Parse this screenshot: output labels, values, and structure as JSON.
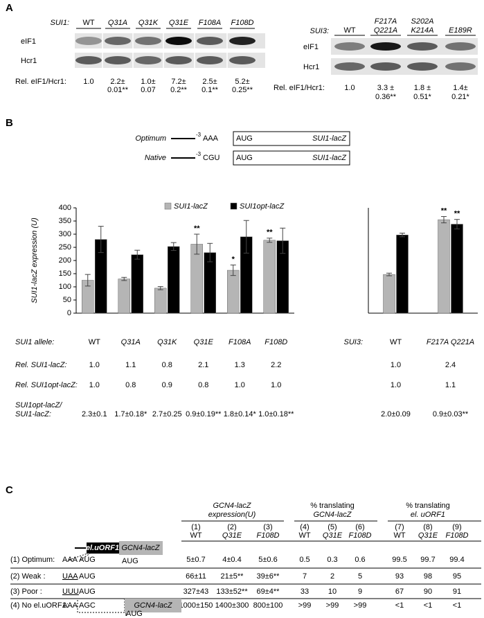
{
  "panel_a": {
    "label": "A",
    "left": {
      "gene": "SUI1:",
      "lanes": [
        "WT",
        "Q31A",
        "Q31K",
        "Q31E",
        "F108A",
        "F108D"
      ],
      "rows": [
        "eIF1",
        "Hcr1"
      ],
      "rel_label": "Rel. eIF1/Hcr1:",
      "rel_values": [
        [
          "1.0"
        ],
        [
          "2.2±",
          "0.01**"
        ],
        [
          "1.0±",
          "0.07"
        ],
        [
          "7.2±",
          "0.2**"
        ],
        [
          "2.5±",
          "0.1**"
        ],
        [
          "5.2±",
          "0.25**"
        ]
      ]
    },
    "right": {
      "gene": "SUI3:",
      "lanes": [
        [
          "WT"
        ],
        [
          "F217A",
          "Q221A"
        ],
        [
          "S202A",
          "K214A"
        ],
        [
          "E189R"
        ]
      ],
      "rows": [
        "eIF1",
        "Hcr1"
      ],
      "rel_label": "Rel. eIF1/Hcr1:",
      "rel_values": [
        [
          "1.0"
        ],
        [
          "3.3 ±",
          "0.36**"
        ],
        [
          "1.8 ±",
          "0.51*"
        ],
        [
          "1.4±",
          "0.21*"
        ]
      ]
    }
  },
  "panel_b": {
    "label": "B",
    "constructs": [
      {
        "name": "Optimum",
        "pos": "-3",
        "seq": "AAA",
        "start": "AUG",
        "gene": "SUI1-lacZ"
      },
      {
        "name": "Native",
        "pos": "-3",
        "seq": "CGU",
        "start": "AUG",
        "gene": "SUI1-lacZ"
      }
    ],
    "rows": [
      {
        "label": [
          "Rel. SUI1-lacZ:"
        ],
        "left": [
          "1.0",
          "1.1",
          "0.8",
          "2.1",
          "1.3",
          "2.2"
        ],
        "right": [
          "1.0",
          "2.4"
        ]
      },
      {
        "label": [
          "Rel. SUI1opt-lacZ:"
        ],
        "left": [
          "1.0",
          "0.8",
          "0.9",
          "0.8",
          "1.0",
          "1.0"
        ],
        "right": [
          "1.0",
          "1.1"
        ]
      },
      {
        "label": [
          "SUI1opt-lacZ/",
          "SUI1-lacZ:"
        ],
        "left": [
          "2.3±0.1",
          "1.7±0.18*",
          "2.7±0.25",
          "0.9±0.19**",
          "1.8±0.14*",
          "1.0±0.18**"
        ],
        "right": [
          "2.0±0.09",
          "0.9±0.03**"
        ]
      }
    ]
  },
  "chart_data": [
    {
      "type": "bar",
      "x_label": "SUI1 allele:",
      "y_label": "SUI1-lacZ expression (U)",
      "categories": [
        "WT",
        "Q31A",
        "Q31K",
        "Q31E",
        "F108A",
        "F108D"
      ],
      "series": [
        {
          "name": "SUI1-lacZ",
          "color": "#b5b5b5",
          "values": [
            125,
            130,
            95,
            262,
            163,
            277
          ],
          "errors": [
            22,
            6,
            6,
            38,
            20,
            8
          ],
          "annotations": [
            null,
            null,
            null,
            "**",
            "*",
            "**"
          ]
        },
        {
          "name": "SUI1opt-lacZ",
          "color": "#000000",
          "values": [
            280,
            222,
            253,
            230,
            290,
            275
          ],
          "errors": [
            50,
            17,
            15,
            35,
            62,
            48
          ],
          "annotations": [
            null,
            null,
            null,
            null,
            null,
            null
          ]
        }
      ],
      "ylim": [
        0,
        400
      ],
      "yticks": [
        0,
        50,
        100,
        150,
        200,
        250,
        300,
        350,
        400
      ],
      "legend": "top"
    },
    {
      "type": "bar",
      "x_label": "SUI3:",
      "categories": [
        "WT",
        "F217A Q221A"
      ],
      "series": [
        {
          "color": "#b5b5b5",
          "values": [
            147,
            355
          ],
          "errors": [
            5,
            12
          ],
          "annotations": [
            null,
            "**"
          ]
        },
        {
          "color": "#000000",
          "values": [
            297,
            338
          ],
          "errors": [
            7,
            18
          ],
          "annotations": [
            null,
            "**"
          ]
        }
      ],
      "ylim": [
        0,
        400
      ]
    }
  ],
  "panel_c": {
    "label": "C",
    "header_groups": [
      [
        "GCN4-lacZ",
        "expression(U)"
      ],
      [
        "% translating",
        "GCN4-lacZ"
      ],
      [
        "% translating",
        "el. uORF1"
      ]
    ],
    "columns": [
      [
        "(1)",
        "WT"
      ],
      [
        "(2)",
        "Q31E"
      ],
      [
        "(3)",
        "F108D"
      ],
      [
        "(4)",
        "WT"
      ],
      [
        "(5)",
        "Q31E"
      ],
      [
        "(6)",
        "F108D"
      ],
      [
        "(7)",
        "WT"
      ],
      [
        "(8)",
        "Q31E"
      ],
      [
        "(9)",
        "F108D"
      ]
    ],
    "diagram": {
      "uorf": "el.uORF1",
      "gene": "GCN4-lacZ",
      "start": "AUG"
    },
    "rows": [
      {
        "label": "(1) Optimum:",
        "context": "AAA",
        "start": "AUG",
        "cells": [
          "5±0.7",
          "4±0.4",
          "5±0.6",
          "0.5",
          "0.3",
          "0.6",
          "99.5",
          "99.7",
          "99.4"
        ]
      },
      {
        "label": "(2)  Weak :",
        "context": "UAA",
        "start": "AUG",
        "cells": [
          "66±11",
          "21±5**",
          "39±6**",
          "7",
          "2",
          "5",
          "93",
          "98",
          "95"
        ]
      },
      {
        "label": "(3)  Poor :",
        "context": "UUU",
        "start": "AUG",
        "cells": [
          "327±43",
          "133±52**",
          "69±4**",
          "33",
          "10",
          "9",
          "67",
          "90",
          "91"
        ]
      },
      {
        "label": "(4) No el.uORF1:",
        "context": "AAA",
        "start": "AGC",
        "gene": "GCN4-lacZ",
        "downstream": "AUG",
        "cells": [
          "1000±150",
          "1400±300",
          "800±100",
          ">99",
          ">99",
          ">99",
          "<1",
          "<1",
          "<1"
        ]
      }
    ]
  }
}
